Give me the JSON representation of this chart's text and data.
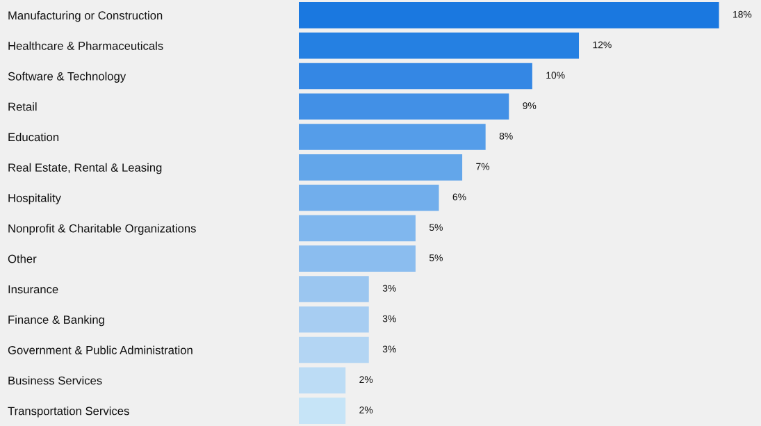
{
  "chart_data": {
    "type": "bar",
    "orientation": "horizontal",
    "data_labels": true,
    "categories": [
      "Manufacturing or Construction",
      "Healthcare & Pharmaceuticals",
      "Software & Technology",
      "Retail",
      "Education",
      "Real Estate, Rental & Leasing",
      "Hospitality",
      "Nonprofit & Charitable Organizations",
      "Other",
      "Insurance",
      "Finance & Banking",
      "Government & Public Administration",
      "Business Services",
      "Transportation Services"
    ],
    "values": [
      18,
      12,
      10,
      9,
      8,
      7,
      6,
      5,
      5,
      3,
      3,
      3,
      2,
      2
    ],
    "value_labels": [
      "18%",
      "12%",
      "10%",
      "9%",
      "8%",
      "7%",
      "6%",
      "5%",
      "5%",
      "3%",
      "3%",
      "3%",
      "2%",
      "2%"
    ],
    "colors": [
      "#1a78e0",
      "#2580e2",
      "#3487e4",
      "#4290e6",
      "#559de9",
      "#63a6ea",
      "#71aeec",
      "#80b7ee",
      "#8bbdef",
      "#9bc6f0",
      "#a7cdf2",
      "#b3d5f3",
      "#bcdcf5",
      "#c6e4f7"
    ],
    "grid": false,
    "legend": false
  }
}
